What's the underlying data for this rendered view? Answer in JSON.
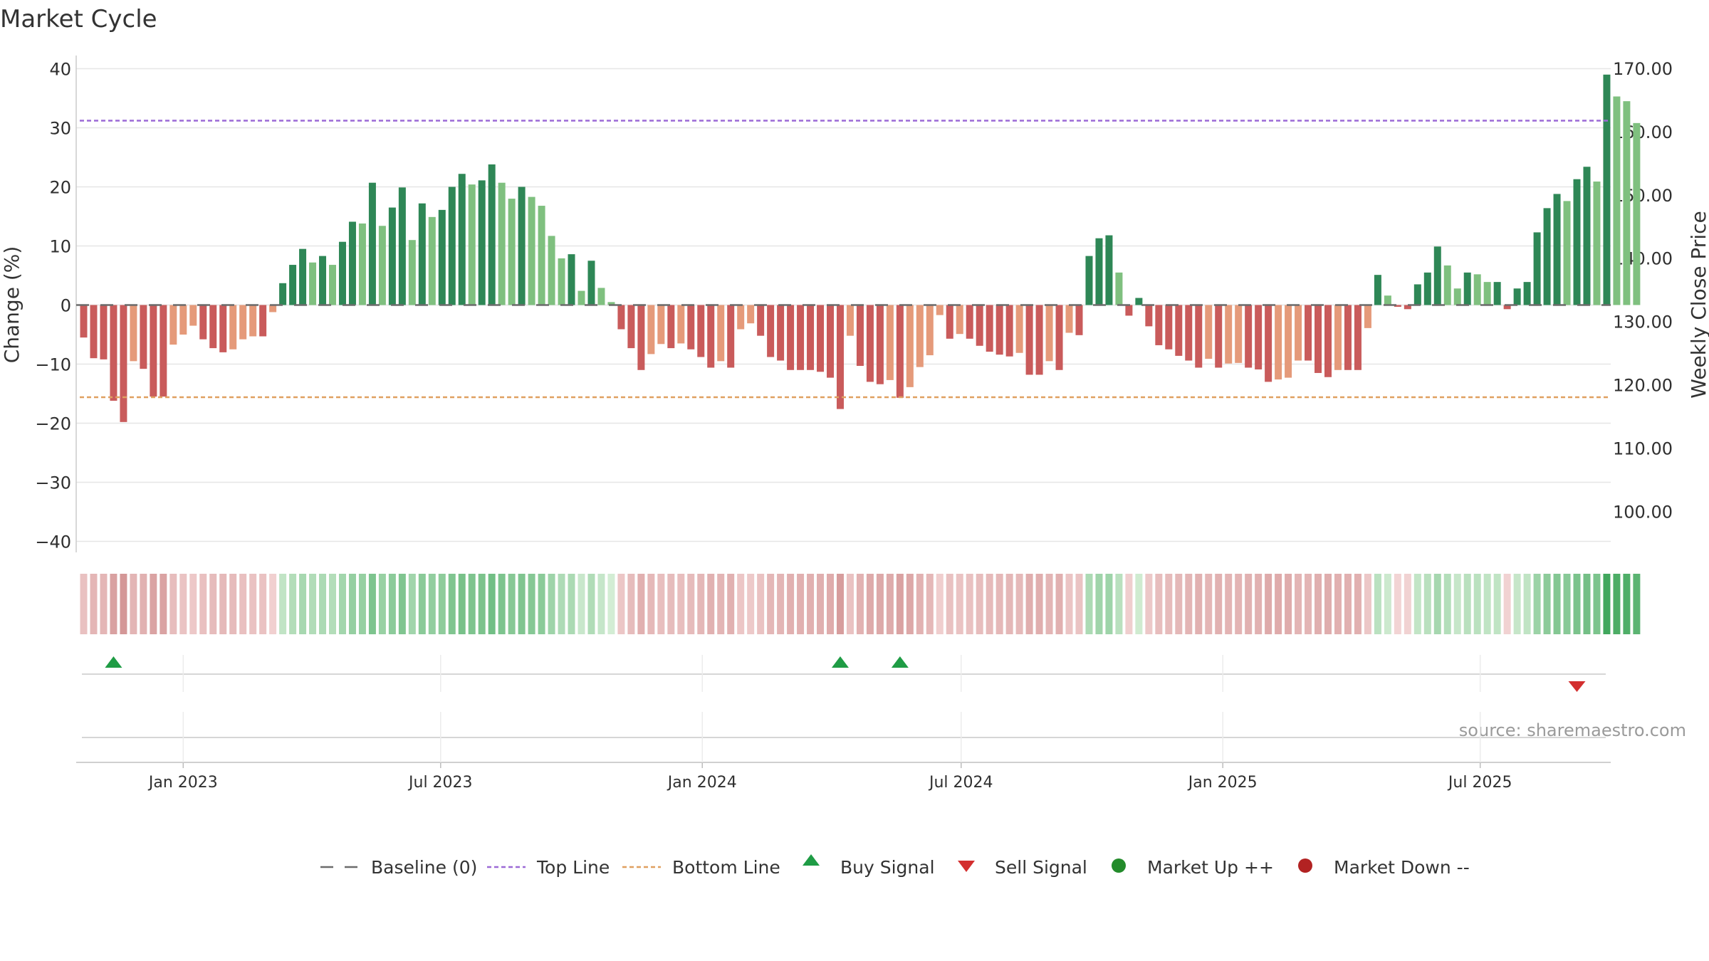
{
  "chart_data": {
    "type": "bar",
    "title": "Market Cycle",
    "ylabel": "Change (%)",
    "y2label": "Weekly Close Price",
    "ylim": [
      -40,
      40
    ],
    "yticks": [
      40,
      30,
      20,
      10,
      0,
      -10,
      -20,
      -30,
      -40
    ],
    "y2ticks": [
      "170.00",
      "160.00",
      "150.00",
      "140.00",
      "130.00",
      "120.00",
      "110.00",
      "100.00"
    ],
    "y2values": [
      170,
      160,
      150,
      140,
      130,
      120,
      110,
      100
    ],
    "y2lim": [
      95.1,
      171.9
    ],
    "xticks": [
      "Jan 2023",
      "Jul 2023",
      "Jan 2024",
      "Jul 2024",
      "Jan 2025",
      "Jul 2025"
    ],
    "xtick_dates": [
      "2023-01-01",
      "2023-07-01",
      "2024-01-01",
      "2024-07-01",
      "2025-01-01",
      "2025-07-01"
    ],
    "first_week": "2022-10-23",
    "baseline": 0,
    "top_line": 31.2,
    "bottom_line": -15.6,
    "series": [
      {
        "values": [
          -5.5,
          -9,
          -9.2,
          -16.2,
          -19.8,
          -9.5,
          -10.8,
          -15.5,
          -15.5,
          -6.7,
          -5,
          -3.5,
          -5.8,
          -7.3,
          -8,
          -7.5,
          -5.8,
          -5.3,
          -5.3,
          -1.2,
          3.7,
          6.8,
          9.5,
          7.2,
          8.3,
          6.8,
          10.7,
          14.1,
          13.8,
          20.7,
          13.4,
          16.5,
          19.9,
          11,
          17.2,
          14.9,
          16.1,
          20,
          22.2,
          20.4,
          21.1,
          23.8,
          20.7,
          18,
          20,
          18.3,
          16.8,
          11.7,
          7.9,
          8.6,
          2.4,
          7.5,
          2.9,
          0.5,
          -4.1,
          -7.3,
          -11,
          -8.3,
          -6.6,
          -7.3,
          -6.5,
          -7.5,
          -8.8,
          -10.6,
          -9.5,
          -10.6,
          -4.1,
          -3.1,
          -5.2,
          -8.8,
          -9.4,
          -11,
          -11,
          -11,
          -11.3,
          -12.3,
          -17.6,
          -5.2,
          -10.3,
          -13,
          -13.4,
          -12.7,
          -15.7,
          -13.9,
          -10.5,
          -8.5,
          -1.7,
          -5.7,
          -4.9,
          -5.7,
          -6.9,
          -7.9,
          -8.4,
          -8.7,
          -8.1,
          -11.8,
          -11.8,
          -9.5,
          -11,
          -4.7,
          -5.1,
          8.3,
          11.3,
          11.8,
          5.5,
          -1.8,
          1.2,
          -3.6,
          -6.8,
          -7.5,
          -8.6,
          -9.4,
          -10.6,
          -9.1,
          -10.6,
          -9.9,
          -9.8,
          -10.6,
          -10.9,
          -13,
          -12.6,
          -12.3,
          -9.4,
          -9.4,
          -11.5,
          -12.2,
          -11,
          -11,
          -11,
          -3.9,
          5.1,
          1.6,
          -0.3,
          -0.7,
          3.5,
          5.5,
          9.9,
          6.7,
          2.8,
          5.5,
          5.2,
          3.9,
          3.9,
          -0.7,
          2.8,
          3.9,
          12.3,
          16.4,
          18.8,
          17.6,
          21.3,
          23.4,
          20.9,
          39,
          35.3,
          34.5,
          30.8
        ]
      }
    ],
    "market_signals": {
      "buy_weeks": [
        3,
        76,
        82
      ],
      "sell_weeks": [
        150
      ]
    },
    "colors": {
      "up_strong": "#2e8756",
      "up_light": "#7fc07f",
      "down_strong": "#c95b5b",
      "down_light": "#e59a7a",
      "baseline": "#6b6b6b",
      "top_line": "#9c6ad6",
      "bottom_line": "#e0a060",
      "buy": "#1f9c45",
      "sell": "#d32f2f",
      "market_up": "#238b2b",
      "market_down": "#b22222",
      "grid": "#e6e6e6"
    },
    "legend": {
      "placement": "bottom-center",
      "items": [
        {
          "key": "baseline",
          "label": "Baseline (0)"
        },
        {
          "key": "top",
          "label": "Top Line"
        },
        {
          "key": "bottom",
          "label": "Bottom Line"
        },
        {
          "key": "buy",
          "label": "Buy Signal"
        },
        {
          "key": "sell",
          "label": "Sell Signal"
        },
        {
          "key": "up",
          "label": "Market Up ++"
        },
        {
          "key": "down",
          "label": "Market Down --"
        }
      ]
    },
    "source": "source: sharemaestro.com"
  }
}
